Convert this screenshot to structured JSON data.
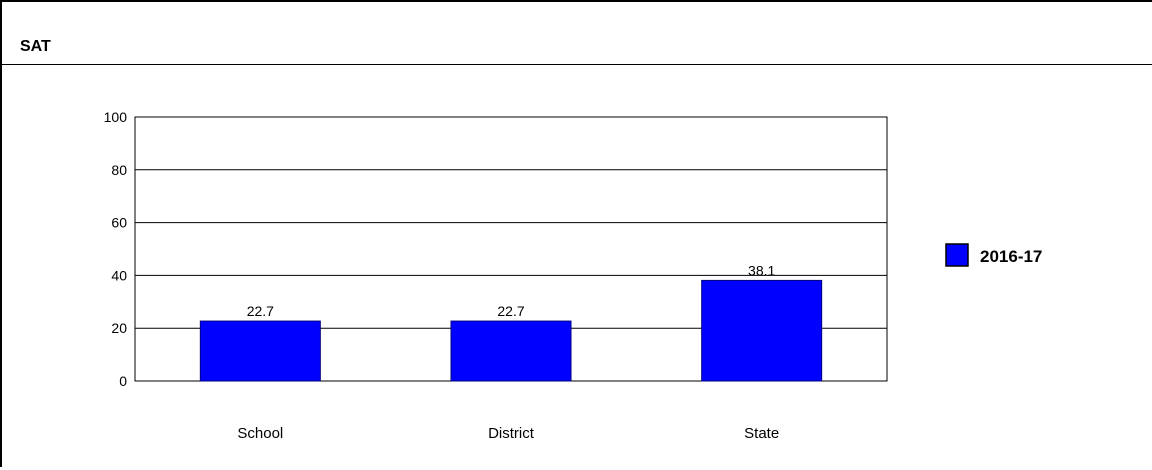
{
  "panel": {
    "title": "SAT"
  },
  "chart_data": {
    "type": "bar",
    "title": "",
    "xlabel": "",
    "ylabel": "",
    "categories": [
      "School",
      "District",
      "State"
    ],
    "series": [
      {
        "name": "2016-17",
        "values": [
          22.7,
          22.7,
          38.1
        ],
        "labels": [
          "22.7",
          "22.7",
          "38.1"
        ]
      }
    ],
    "ylim": [
      0,
      100
    ],
    "yticks": [
      0,
      20,
      40,
      60,
      80,
      100
    ],
    "grid": true,
    "legend_position": "right",
    "colors": {
      "bar": "#0000ff",
      "grid": "#000000"
    }
  }
}
